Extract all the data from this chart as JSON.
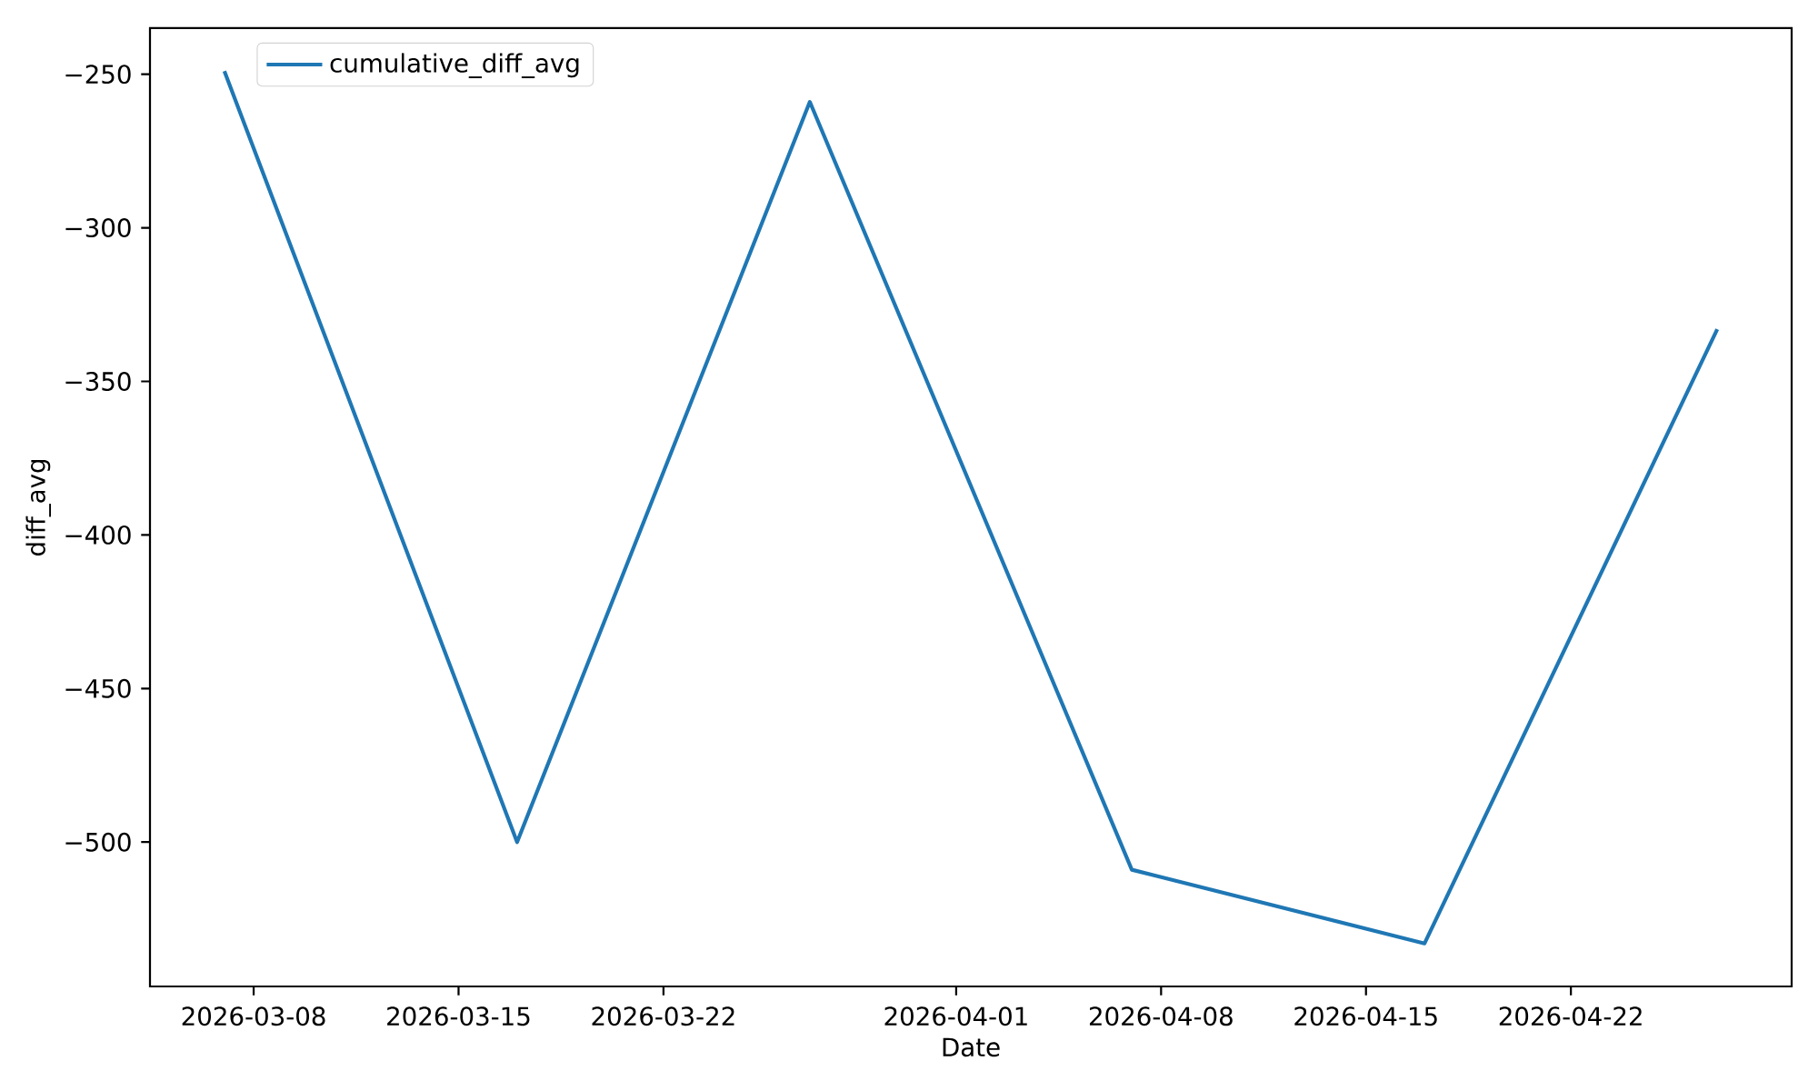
{
  "chart_data": {
    "type": "line",
    "xlabel": "Date",
    "ylabel": "diff_avg",
    "x": [
      "2026-03-07",
      "2026-03-17",
      "2026-03-27",
      "2026-04-07",
      "2026-04-17",
      "2026-04-27"
    ],
    "series": [
      {
        "name": "cumulative_diff_avg",
        "color": "#1f77b4",
        "values": [
          -249,
          -500,
          -259,
          -509,
          -533,
          -333
        ]
      }
    ],
    "xlim": [
      "2026-03-04T11:00",
      "2026-04-29T13:00"
    ],
    "ylim": [
      -547,
      -235
    ],
    "xticks": [
      "2026-03-08",
      "2026-03-15",
      "2026-03-22",
      "2026-04-01",
      "2026-04-08",
      "2026-04-15",
      "2026-04-22"
    ],
    "yticks": [
      {
        "value": -500,
        "label": "−500"
      },
      {
        "value": -450,
        "label": "−450"
      },
      {
        "value": -400,
        "label": "−400"
      },
      {
        "value": -350,
        "label": "−350"
      },
      {
        "value": -300,
        "label": "−300"
      },
      {
        "value": -250,
        "label": "−250"
      }
    ],
    "legend": "top left",
    "grid": false,
    "marker": "none",
    "line_style": "solid"
  }
}
